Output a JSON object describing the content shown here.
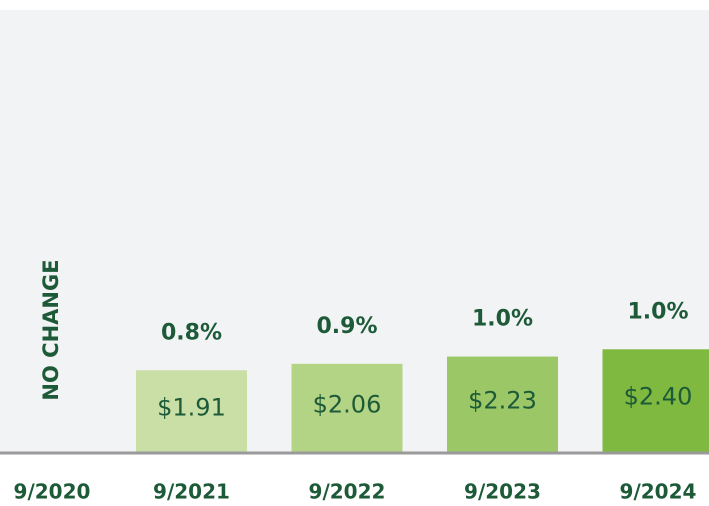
{
  "chart_data": {
    "type": "bar",
    "categories": [
      "9/2020",
      "9/2021",
      "9/2022",
      "9/2023",
      "9/2024"
    ],
    "values": [
      null,
      1.91,
      2.06,
      2.23,
      2.4
    ],
    "value_labels": [
      null,
      "$1.91",
      "$2.06",
      "$2.23",
      "$2.40"
    ],
    "changes": [
      null,
      0.8,
      0.9,
      1.0,
      1.0
    ],
    "change_labels": [
      null,
      "0.8%",
      "0.9%",
      "1.0%",
      "1.0%"
    ],
    "annotation": "NO CHANGE",
    "colors": [
      null,
      "#c9dfa6",
      "#b3d385",
      "#9bc766",
      "#7fb940"
    ]
  }
}
